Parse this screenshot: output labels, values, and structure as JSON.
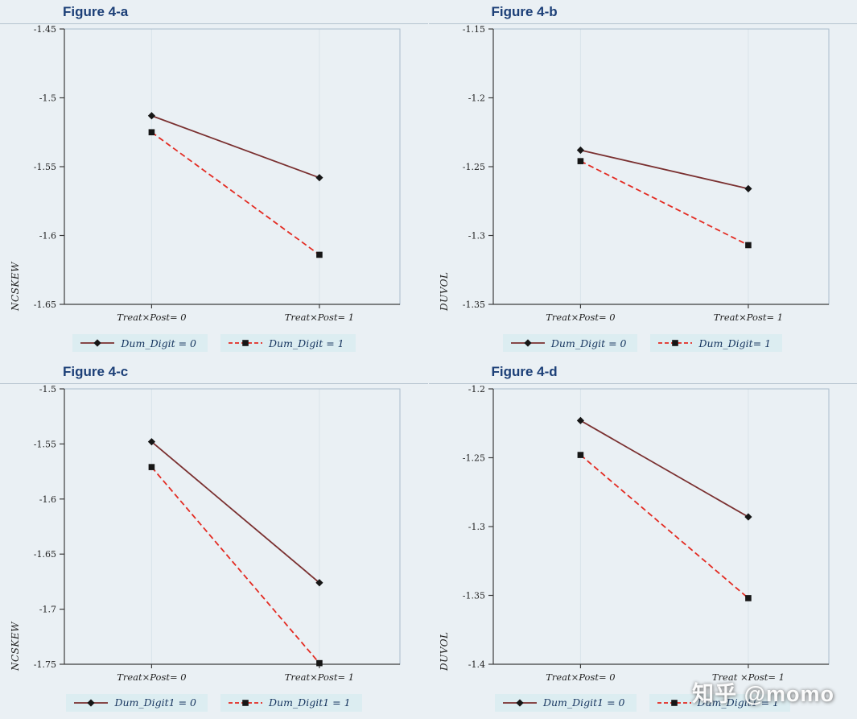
{
  "page": {
    "watermark": "知乎 @momo",
    "background": "#eaf0f4",
    "title_color": "#1c3f77",
    "legend_bg": "#dcedf1",
    "legend_text_color": "#16355f",
    "grid_color": "#d9e4ea",
    "axis_color": "#3c3c3c",
    "box_color": "#aabccb",
    "marker_color": "#161616"
  },
  "chart_data": [
    {
      "type": "line",
      "title": "Figure 4-a",
      "ylabel": "NCSKEW",
      "xlabel": "",
      "categories": [
        "Treat×Post= 0",
        "Treat×Post= 1"
      ],
      "ylim": [
        -1.65,
        -1.45
      ],
      "yticks": [
        -1.45,
        -1.5,
        -1.55,
        -1.6,
        -1.65
      ],
      "grid": "vertical-only",
      "legend_position": "bottom",
      "series": [
        {
          "name": "Dum_Digit = 0",
          "values": [
            -1.513,
            -1.558
          ],
          "line": "solid",
          "marker": "diamond",
          "color": "#7a3030"
        },
        {
          "name": "Dum_Digit  = 1",
          "values": [
            -1.525,
            -1.614
          ],
          "line": "dashed",
          "marker": "square",
          "color": "#e32b22"
        }
      ]
    },
    {
      "type": "line",
      "title": "Figure 4-b",
      "ylabel": "DUVOL",
      "xlabel": "",
      "categories": [
        "Treat×Post= 0",
        "Treat×Post= 1"
      ],
      "ylim": [
        -1.35,
        -1.15
      ],
      "yticks": [
        -1.15,
        -1.2,
        -1.25,
        -1.3,
        -1.35
      ],
      "grid": "vertical-only",
      "legend_position": "bottom",
      "series": [
        {
          "name": "Dum_Digit = 0",
          "values": [
            -1.238,
            -1.266
          ],
          "line": "solid",
          "marker": "diamond",
          "color": "#7a3030"
        },
        {
          "name": "Dum_Digit= 1",
          "values": [
            -1.246,
            -1.307
          ],
          "line": "dashed",
          "marker": "square",
          "color": "#e32b22"
        }
      ]
    },
    {
      "type": "line",
      "title": "Figure 4-c",
      "ylabel": "NCSKEW",
      "xlabel": "",
      "categories": [
        "Treat×Post= 0",
        "Treat×Post= 1"
      ],
      "ylim": [
        -1.75,
        -1.5
      ],
      "yticks": [
        -1.5,
        -1.55,
        -1.6,
        -1.65,
        -1.7,
        -1.75
      ],
      "grid": "vertical-only",
      "legend_position": "bottom",
      "series": [
        {
          "name": "Dum_Digit1 = 0",
          "values": [
            -1.548,
            -1.676
          ],
          "line": "solid",
          "marker": "diamond",
          "color": "#7a3030"
        },
        {
          "name": "Dum_Digit1 = 1",
          "values": [
            -1.571,
            -1.749
          ],
          "line": "dashed",
          "marker": "square",
          "color": "#e32b22"
        }
      ]
    },
    {
      "type": "line",
      "title": "Figure 4-d",
      "ylabel": "DUVOL",
      "xlabel": "",
      "categories": [
        "Treat×Post= 0",
        "Treat ×Post= 1"
      ],
      "ylim": [
        -1.4,
        -1.2
      ],
      "yticks": [
        -1.2,
        -1.25,
        -1.3,
        -1.35,
        -1.4
      ],
      "grid": "vertical-only",
      "legend_position": "bottom",
      "series": [
        {
          "name": "Dum_Digit1 = 0",
          "values": [
            -1.223,
            -1.293
          ],
          "line": "solid",
          "marker": "diamond",
          "color": "#7a3030"
        },
        {
          "name": "Dum_Digit1 = 1",
          "values": [
            -1.248,
            -1.352
          ],
          "line": "dashed",
          "marker": "square",
          "color": "#e32b22"
        }
      ]
    }
  ]
}
